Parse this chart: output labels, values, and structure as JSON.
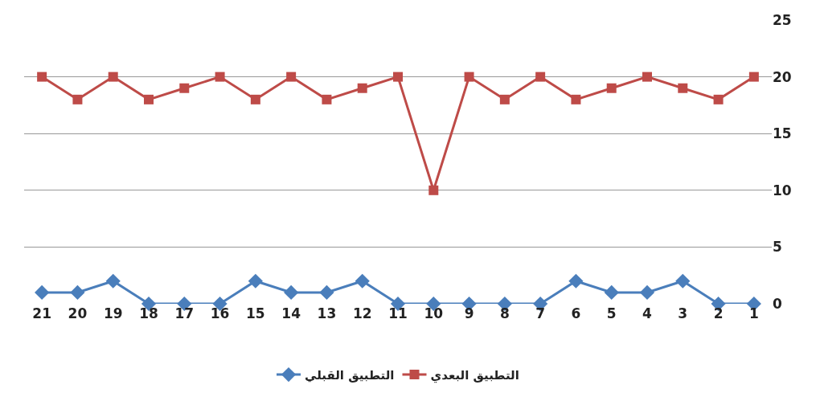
{
  "chart_data": {
    "type": "line",
    "categories": [
      "21",
      "20",
      "19",
      "18",
      "17",
      "16",
      "15",
      "14",
      "13",
      "12",
      "11",
      "10",
      "9",
      "8",
      "7",
      "6",
      "5",
      "4",
      "3",
      "2",
      "1"
    ],
    "series": [
      {
        "name": "التطبيق القبلي",
        "color": "#4a7ebb",
        "marker": "diamond",
        "values": [
          1,
          1,
          2,
          0,
          0,
          0,
          2,
          1,
          1,
          2,
          0,
          0,
          0,
          0,
          0,
          2,
          1,
          1,
          2,
          0,
          0
        ]
      },
      {
        "name": "التطبيق البعدي",
        "color": "#be4b48",
        "marker": "square",
        "values": [
          20,
          18,
          20,
          18,
          19,
          20,
          18,
          20,
          18,
          19,
          20,
          10,
          20,
          18,
          20,
          18,
          19,
          20,
          19,
          18,
          20
        ]
      }
    ],
    "ylim": [
      0,
      25
    ],
    "yticks": [
      0,
      5,
      10,
      15,
      20,
      25
    ],
    "grid": "y",
    "legend": "bottom",
    "line_style": "solid"
  }
}
